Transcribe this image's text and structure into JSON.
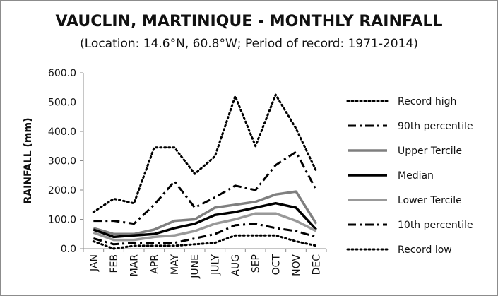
{
  "chart_data": {
    "type": "line",
    "title": "VAUCLIN, MARTINIQUE - MONTHLY RAINFALL",
    "subtitle": "(Location: 14.6°N, 60.8°W; Period of record: 1971-2014)",
    "xlabel": "",
    "ylabel": "RAINFALL (mm)",
    "ylim": [
      0,
      600
    ],
    "yticks": [
      "0.0",
      "100.0",
      "200.0",
      "300.0",
      "400.0",
      "500.0",
      "600.0"
    ],
    "categories": [
      "JAN",
      "FEB",
      "MAR",
      "APR",
      "MAY",
      "JUNE",
      "JULY",
      "AUG",
      "SEP",
      "OCT",
      "NOV",
      "DEC"
    ],
    "grid": false,
    "legend_position": "right",
    "series": [
      {
        "name": "Record high",
        "style": "dotted",
        "color": "#000000",
        "values": [
          125,
          170,
          155,
          345,
          345,
          255,
          315,
          520,
          350,
          525,
          410,
          265
        ]
      },
      {
        "name": "90th percentile",
        "style": "dashdot",
        "color": "#000000",
        "values": [
          95,
          95,
          85,
          150,
          230,
          140,
          175,
          215,
          200,
          285,
          330,
          200
        ]
      },
      {
        "name": "Upper Tercile",
        "style": "solid",
        "color": "#7f7f7f",
        "values": [
          70,
          50,
          50,
          65,
          95,
          100,
          140,
          150,
          160,
          185,
          195,
          85
        ]
      },
      {
        "name": "Median",
        "style": "solid",
        "color": "#000000",
        "values": [
          65,
          40,
          45,
          50,
          70,
          85,
          115,
          125,
          140,
          155,
          140,
          65
        ]
      },
      {
        "name": "Lower Tercile",
        "style": "solid",
        "color": "#999999",
        "values": [
          55,
          30,
          30,
          40,
          45,
          60,
          85,
          100,
          120,
          120,
          95,
          60
        ]
      },
      {
        "name": "10th percentile",
        "style": "dashdot",
        "color": "#000000",
        "values": [
          35,
          15,
          20,
          20,
          20,
          35,
          50,
          80,
          85,
          70,
          60,
          40
        ]
      },
      {
        "name": "Record low",
        "style": "dotted",
        "color": "#000000",
        "values": [
          25,
          0,
          10,
          10,
          10,
          15,
          20,
          45,
          45,
          45,
          25,
          10
        ]
      }
    ]
  }
}
